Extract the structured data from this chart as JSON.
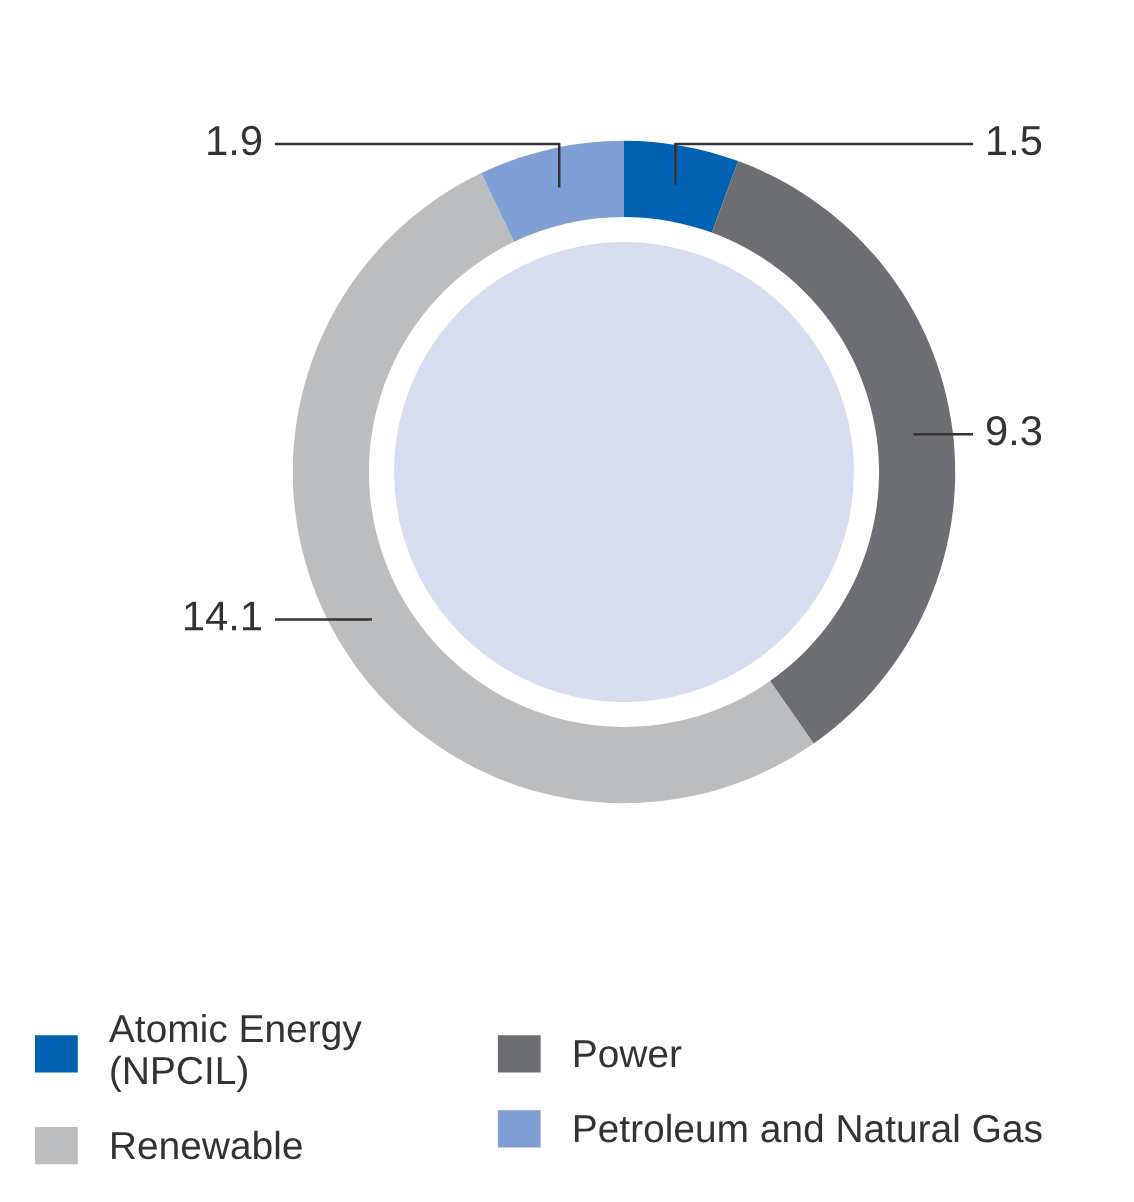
{
  "chart_data": {
    "type": "donut",
    "categories": [
      "Atomic Energy (NPCIL)",
      "Power",
      "Renewable",
      "Petroleum and Natural Gas"
    ],
    "values": [
      1.5,
      9.3,
      14.1,
      1.9
    ],
    "colors": [
      "#0062b1",
      "#6d6e71",
      "#bcbdbf",
      "#7f9fd4"
    ],
    "data_labels": true,
    "legend": "bottom"
  }
}
